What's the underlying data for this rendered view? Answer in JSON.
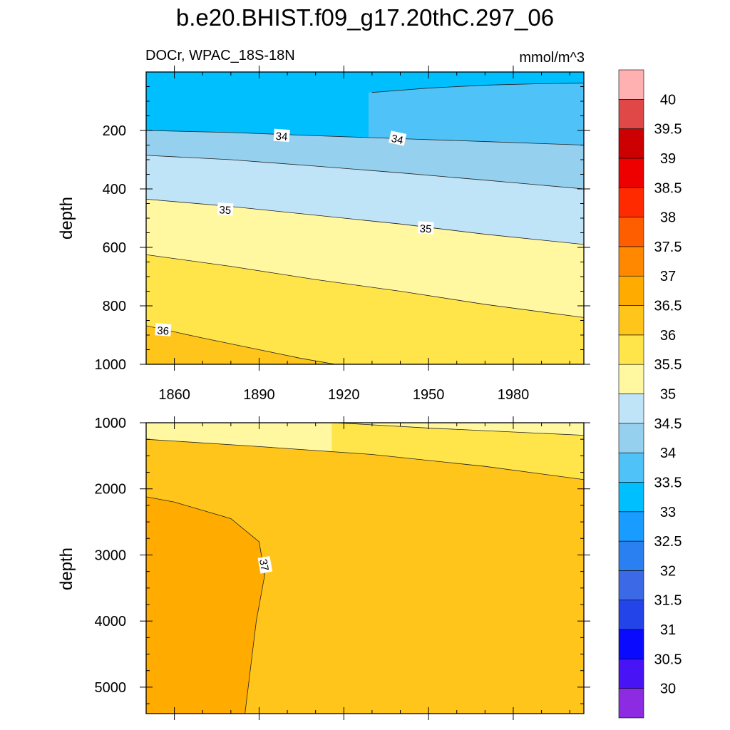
{
  "chart_data": [
    {
      "type": "contour",
      "panel": "upper",
      "title": "b.e20.BHIST.f09_g17.20thC.297_06",
      "left_string": "DOCr, WPAC_18S-18N",
      "right_string": "mmol/m^3",
      "ylabel": "depth",
      "xlabel": "",
      "xlim": [
        1850,
        2005
      ],
      "ylim": [
        1000,
        0
      ],
      "x_ticks": [
        1860,
        1890,
        1920,
        1950,
        1980
      ],
      "x_tick_labels": [
        "1860",
        "1890",
        "1920",
        "1950",
        "1980"
      ],
      "y_ticks": [
        200,
        400,
        600,
        800,
        1000
      ],
      "y_tick_labels": [
        "200",
        "400",
        "600",
        "800",
        "1000"
      ],
      "contour_lines": [
        {
          "level": 33.5,
          "x": [
            1930,
            1950,
            1970,
            1990,
            2005
          ],
          "y": [
            70,
            55,
            45,
            40,
            38
          ]
        },
        {
          "level": 34.0,
          "x": [
            1850,
            1880,
            1910,
            1940,
            1970,
            2005
          ],
          "y": [
            200,
            207,
            218,
            228,
            238,
            250
          ]
        },
        {
          "level": 34.5,
          "x": [
            1850,
            1880,
            1910,
            1940,
            1970,
            2005
          ],
          "y": [
            285,
            300,
            322,
            345,
            370,
            400
          ]
        },
        {
          "level": 35.0,
          "x": [
            1850,
            1880,
            1910,
            1940,
            1970,
            2005
          ],
          "y": [
            435,
            460,
            490,
            520,
            555,
            590
          ]
        },
        {
          "level": 35.5,
          "x": [
            1850,
            1880,
            1910,
            1940,
            1970,
            2005
          ],
          "y": [
            625,
            665,
            710,
            750,
            795,
            840
          ]
        },
        {
          "level": 36.0,
          "x": [
            1850,
            1870,
            1890,
            1905,
            1917
          ],
          "y": [
            868,
            910,
            950,
            980,
            1000
          ]
        }
      ],
      "contour_labels": [
        {
          "text": "34",
          "x": 1898,
          "y": 218
        },
        {
          "text": "34",
          "x": 1939,
          "y": 228
        },
        {
          "text": "35",
          "x": 1878,
          "y": 470
        },
        {
          "text": "35",
          "x": 1949,
          "y": 534
        },
        {
          "text": "36",
          "x": 1856,
          "y": 883
        }
      ]
    },
    {
      "type": "contour",
      "panel": "lower",
      "ylabel": "depth",
      "xlim": [
        1850,
        2005
      ],
      "ylim": [
        5400,
        1000
      ],
      "x_ticks": [
        1860,
        1890,
        1920,
        1950,
        1980
      ],
      "y_ticks": [
        1000,
        2000,
        3000,
        4000,
        5000
      ],
      "y_tick_labels": [
        "1000",
        "2000",
        "3000",
        "4000",
        "5000"
      ],
      "contour_lines": [
        {
          "level": 35.5,
          "x": [
            1917,
            1950,
            1980,
            2005
          ],
          "y": [
            1000,
            1080,
            1140,
            1190
          ]
        },
        {
          "level": 36.0,
          "x": [
            1850,
            1890,
            1930,
            1970,
            2005
          ],
          "y": [
            1250,
            1360,
            1480,
            1660,
            1860
          ]
        },
        {
          "level": 36.5,
          "x": [
            1850,
            1860,
            1880,
            1890,
            1892,
            1889,
            1885
          ],
          "y": [
            2120,
            2200,
            2450,
            2800,
            3300,
            4000,
            5400
          ]
        }
      ],
      "contour_labels": [
        {
          "text": "37",
          "x": 1892,
          "y": 3150
        }
      ]
    }
  ],
  "colorbar": {
    "labels": [
      "40",
      "39.5",
      "39",
      "38.5",
      "38",
      "37.5",
      "37",
      "36.5",
      "36",
      "35.5",
      "35",
      "34.5",
      "34",
      "33.5",
      "33",
      "32.5",
      "32",
      "31.5",
      "31",
      "30.5",
      "30"
    ],
    "levels": [
      30,
      30.5,
      31,
      31.5,
      32,
      32.5,
      33,
      33.5,
      34,
      34.5,
      35,
      35.5,
      36,
      36.5,
      37,
      37.5,
      38,
      38.5,
      39,
      39.5,
      40
    ],
    "colors": [
      "#8c2be2",
      "#4814f5",
      "#0a0aff",
      "#2244e8",
      "#3c6ae6",
      "#2a80f0",
      "#189cff",
      "#00bfff",
      "#4fc3f7",
      "#96d0ef",
      "#bfe3f7",
      "#fff8a0",
      "#ffe44a",
      "#ffc51a",
      "#ffab00",
      "#ff8800",
      "#ff5e00",
      "#ff2a00",
      "#ee0000",
      "#cc0000",
      "#e04848",
      "#ffb0b0"
    ]
  }
}
